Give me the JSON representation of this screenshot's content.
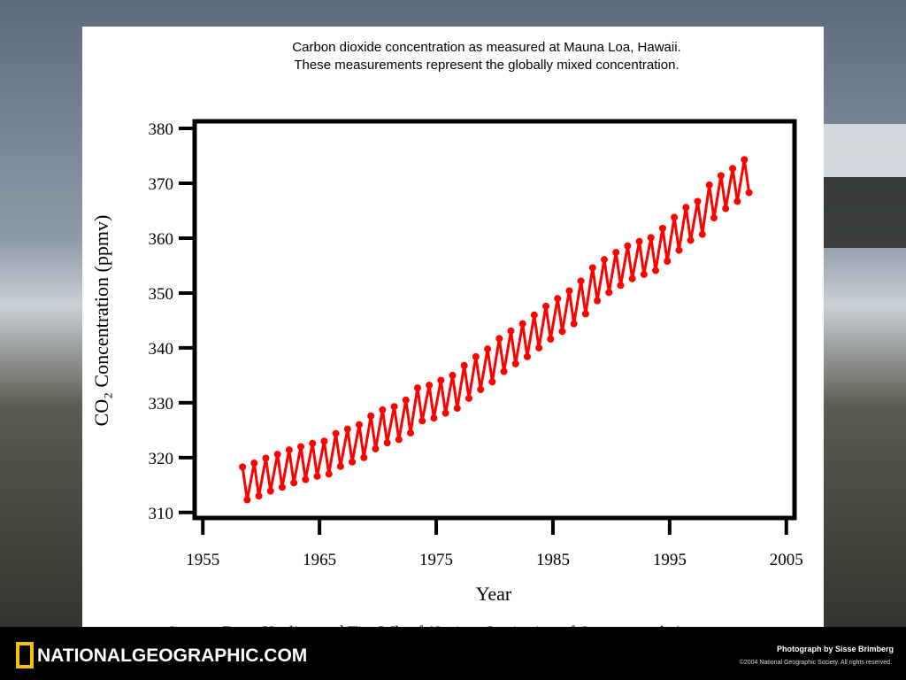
{
  "chart_data": {
    "type": "line",
    "title": "Carbon dioxide concentration as measured at Mauna Loa, Hawaii. These measurements represent the globally mixed concentration.",
    "x_label": "Year",
    "y_label": "CO₂ Concentration (ppmv)",
    "source": "Source: Dave Keeling and Tim Whorf (Scripps Institution of Oceanography)",
    "color": "#ff0000",
    "xlim": [
      1954.3,
      2005.7
    ],
    "xticks": [
      1955,
      1965,
      1975,
      1985,
      1995,
      2005
    ],
    "ylim": [
      309,
      381.3
    ],
    "yticks": [
      310,
      320,
      330,
      340,
      350,
      360,
      370,
      380
    ],
    "x": [
      1958.4,
      1958.8,
      1959.4,
      1959.8,
      1960.4,
      1960.8,
      1961.4,
      1961.8,
      1962.4,
      1962.8,
      1963.4,
      1963.8,
      1964.4,
      1964.8,
      1965.4,
      1965.8,
      1966.4,
      1966.8,
      1967.4,
      1967.8,
      1968.4,
      1968.8,
      1969.4,
      1969.8,
      1970.4,
      1970.8,
      1971.4,
      1971.8,
      1972.4,
      1972.8,
      1973.4,
      1973.8,
      1974.4,
      1974.8,
      1975.4,
      1975.8,
      1976.4,
      1976.8,
      1977.4,
      1977.8,
      1978.4,
      1978.8,
      1979.4,
      1979.8,
      1980.4,
      1980.8,
      1981.4,
      1981.8,
      1982.4,
      1982.8,
      1983.4,
      1983.8,
      1984.4,
      1984.8,
      1985.4,
      1985.8,
      1986.4,
      1986.8,
      1987.4,
      1987.8,
      1988.4,
      1988.8,
      1989.4,
      1989.8,
      1990.4,
      1990.8,
      1991.4,
      1991.8,
      1992.4,
      1992.8,
      1993.4,
      1993.8,
      1994.4,
      1994.8,
      1995.4,
      1995.8,
      1996.4,
      1996.8,
      1997.4,
      1997.8,
      1998.4,
      1998.8,
      1999.4,
      1999.8,
      2000.4,
      2000.8,
      2001.4,
      2001.8
    ],
    "values": [
      318.3,
      312.3,
      319.0,
      313.0,
      319.9,
      313.9,
      320.6,
      314.6,
      321.4,
      315.4,
      322.0,
      316.0,
      322.6,
      316.6,
      323.0,
      317.0,
      324.4,
      318.4,
      325.2,
      319.2,
      326.0,
      320.0,
      327.6,
      321.6,
      328.7,
      322.7,
      329.3,
      323.3,
      330.5,
      324.5,
      332.7,
      326.7,
      333.2,
      327.2,
      334.1,
      328.1,
      335.0,
      329.0,
      336.8,
      330.8,
      338.4,
      332.4,
      339.8,
      333.8,
      341.7,
      335.7,
      343.1,
      337.1,
      344.4,
      338.4,
      346.0,
      340.0,
      347.6,
      341.6,
      349.0,
      343.0,
      350.4,
      344.4,
      352.2,
      346.2,
      354.6,
      348.6,
      356.1,
      350.1,
      357.4,
      351.4,
      358.6,
      352.6,
      359.4,
      353.4,
      360.1,
      354.1,
      361.8,
      355.8,
      363.8,
      357.8,
      365.6,
      359.6,
      366.7,
      360.7,
      369.7,
      363.7,
      371.4,
      365.4,
      372.7,
      366.7,
      374.3,
      368.3
    ]
  },
  "footer": {
    "brand": "NATIONALGEOGRAPHIC.COM",
    "credit": "Photograph by Sisse Brimberg",
    "copyright": "©2004 National Geographic Society. All rights reserved."
  }
}
